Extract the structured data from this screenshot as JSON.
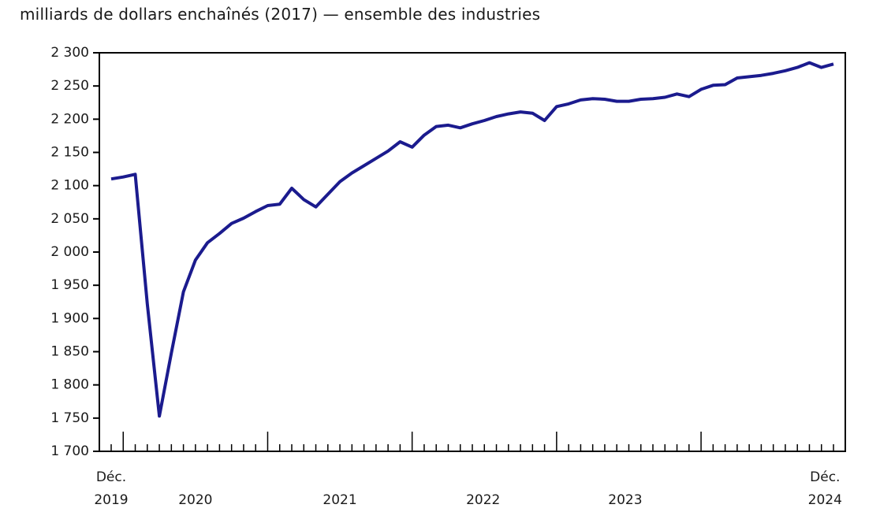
{
  "title": "milliards de dollars enchaînés (2017) — ensemble des industries",
  "chart_data": {
    "type": "line",
    "title": "milliards de dollars enchaînés (2017) — ensemble des industries",
    "xlabel": "",
    "ylabel": "milliards de dollars enchaînés (2017)",
    "ylim": [
      1700,
      2300
    ],
    "y_step": 50,
    "grid": false,
    "legend_position": "none",
    "x": [
      "2019-12",
      "2020-01",
      "2020-02",
      "2020-03",
      "2020-04",
      "2020-05",
      "2020-06",
      "2020-07",
      "2020-08",
      "2020-09",
      "2020-10",
      "2020-11",
      "2020-12",
      "2021-01",
      "2021-02",
      "2021-03",
      "2021-04",
      "2021-05",
      "2021-06",
      "2021-07",
      "2021-08",
      "2021-09",
      "2021-10",
      "2021-11",
      "2021-12",
      "2022-01",
      "2022-02",
      "2022-03",
      "2022-04",
      "2022-05",
      "2022-06",
      "2022-07",
      "2022-08",
      "2022-09",
      "2022-10",
      "2022-11",
      "2022-12",
      "2023-01",
      "2023-02",
      "2023-03",
      "2023-04",
      "2023-05",
      "2023-06",
      "2023-07",
      "2023-08",
      "2023-09",
      "2023-10",
      "2023-11",
      "2023-12",
      "2024-01",
      "2024-02",
      "2024-03",
      "2024-04",
      "2024-05",
      "2024-06",
      "2024-07",
      "2024-08",
      "2024-09",
      "2024-10",
      "2024-11",
      "2024-12"
    ],
    "series": [
      {
        "name": "ensemble des industries",
        "values": [
          2110,
          2113,
          2117,
          1922,
          1753,
          1848,
          1940,
          1988,
          2014,
          2028,
          2043,
          2051,
          2061,
          2070,
          2072,
          2096,
          2079,
          2068,
          2087,
          2106,
          2119,
          2130,
          2141,
          2152,
          2166,
          2158,
          2176,
          2189,
          2191,
          2187,
          2193,
          2198,
          2204,
          2208,
          2211,
          2209,
          2198,
          2219,
          2223,
          2229,
          2231,
          2230,
          2227,
          2227,
          2230,
          2231,
          2233,
          2238,
          2234,
          2245,
          2251,
          2252,
          2262,
          2264,
          2266,
          2269,
          2273,
          2278,
          2285,
          2278,
          2283
        ]
      }
    ]
  },
  "y_axis": {
    "tick_labels": [
      "1 700",
      "1 750",
      "1 800",
      "1 850",
      "1 900",
      "1 950",
      "2 000",
      "2 050",
      "2 100",
      "2 150",
      "2 200",
      "2 250",
      "2 300"
    ]
  },
  "x_axis": {
    "labels": [
      {
        "top": "Déc.",
        "bottom": "2019",
        "anchor_month": 0
      },
      {
        "top": "",
        "bottom": "2020",
        "anchor_month": 7
      },
      {
        "top": "",
        "bottom": "2021",
        "anchor_month": 19
      },
      {
        "top": "",
        "bottom": "2022",
        "anchor_month": 30.9
      },
      {
        "top": "",
        "bottom": "2023",
        "anchor_month": 42.7
      },
      {
        "top": "Déc.",
        "bottom": "2024",
        "anchor_month": 59.3
      }
    ],
    "year_tick_months": [
      1,
      13,
      25,
      37,
      49
    ]
  },
  "colors": {
    "line": "#1b1b8e",
    "axis": "#000000",
    "text": "#1a1a1a"
  }
}
